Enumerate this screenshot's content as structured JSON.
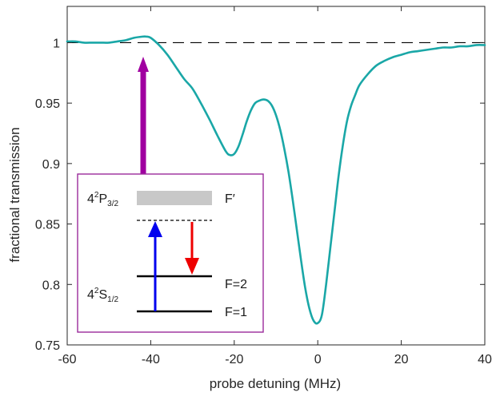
{
  "chart_data": {
    "type": "line",
    "xlabel": "probe detuning (MHz)",
    "ylabel": "fractional transmission",
    "xlim": [
      -60,
      40
    ],
    "ylim": [
      0.75,
      1.03
    ],
    "xticks": [
      -60,
      -40,
      -20,
      0,
      20,
      40
    ],
    "yticks": [
      0.75,
      0.8,
      0.85,
      0.9,
      0.95,
      1
    ],
    "xtick_labels": [
      "-60",
      "-40",
      "-20",
      "0",
      "20",
      "40"
    ],
    "ytick_labels": [
      "0.75",
      "0.8",
      "0.85",
      "0.9",
      "0.95",
      "1"
    ],
    "grid": false,
    "reference_line": {
      "y": 1,
      "style": "dashed",
      "color": "#000000"
    },
    "series": [
      {
        "color": "#1aa7a7",
        "x": [
          -60,
          -58,
          -56,
          -54,
          -52,
          -50,
          -48,
          -46,
          -44,
          -42,
          -41,
          -40,
          -38,
          -36,
          -34,
          -32,
          -30,
          -28,
          -26,
          -24,
          -22,
          -21,
          -20,
          -19,
          -18,
          -17,
          -16,
          -15,
          -14,
          -13,
          -12,
          -11,
          -10,
          -9,
          -8,
          -7,
          -6,
          -5,
          -4,
          -3,
          -2,
          -1,
          0,
          1,
          2,
          3,
          4,
          5,
          6,
          7,
          8,
          9,
          10,
          12,
          14,
          16,
          18,
          20,
          22,
          24,
          26,
          28,
          30,
          32,
          34,
          36,
          38,
          40
        ],
        "y": [
          1.001,
          1.001,
          1.0,
          1.0,
          1.0,
          1.0,
          1.001,
          1.002,
          1.004,
          1.005,
          1.005,
          1.004,
          0.998,
          0.99,
          0.98,
          0.97,
          0.962,
          0.95,
          0.937,
          0.923,
          0.91,
          0.907,
          0.908,
          0.914,
          0.924,
          0.935,
          0.944,
          0.95,
          0.952,
          0.953,
          0.952,
          0.948,
          0.94,
          0.928,
          0.912,
          0.893,
          0.87,
          0.845,
          0.82,
          0.797,
          0.78,
          0.77,
          0.768,
          0.775,
          0.8,
          0.83,
          0.86,
          0.89,
          0.915,
          0.935,
          0.948,
          0.957,
          0.965,
          0.974,
          0.981,
          0.985,
          0.988,
          0.99,
          0.992,
          0.993,
          0.994,
          0.995,
          0.996,
          0.996,
          0.997,
          0.997,
          0.998,
          0.998
        ]
      }
    ]
  },
  "inset": {
    "upper_level_label": "4",
    "upper_level_sup": "2",
    "upper_level_letter": "P",
    "upper_level_sub": "3/2",
    "lower_level_label": "4",
    "lower_level_sup": "2",
    "lower_level_letter": "S",
    "lower_level_sub": "1/2",
    "f_prime_label": "F′",
    "f2_label": "F=2",
    "f1_label": "F=1",
    "border_color": "#9b2a9b",
    "pump_arrow_color": "#0000ee",
    "stokes_arrow_color": "#ee0000",
    "pointer_arrow_color": "#a000a0",
    "upper_band_color": "#c8c8c8"
  }
}
